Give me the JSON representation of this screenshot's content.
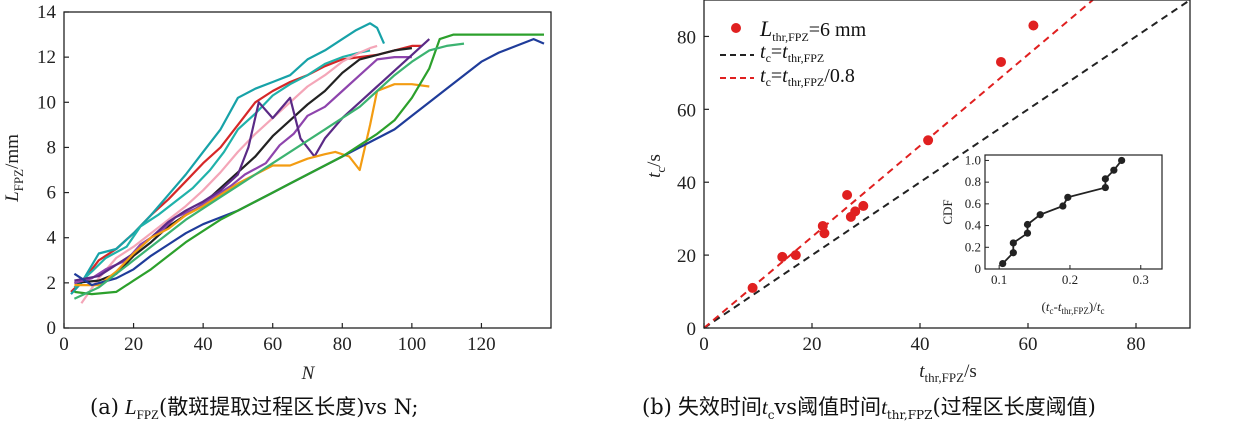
{
  "panel_a": {
    "caption_prefix": "(a)",
    "caption_suffix": "(散斑提取过程区长度)vs N;",
    "ylabel_main": "L",
    "ylabel_sub": "FPZ",
    "ylabel_unit": "/mm",
    "xlabel": "N",
    "chart_data": {
      "type": "line",
      "xlabel": "N",
      "ylabel": "LFPZ/mm",
      "xlim": [
        0,
        140
      ],
      "ylim": [
        0,
        14
      ],
      "xticks": [
        0,
        20,
        40,
        60,
        80,
        100,
        120
      ],
      "yticks": [
        0,
        2,
        4,
        6,
        8,
        10,
        12,
        14
      ],
      "grid": false,
      "series": [
        {
          "color": "#d62728",
          "x": [
            2,
            6,
            10,
            15,
            20,
            25,
            30,
            35,
            40,
            45,
            50,
            55,
            60,
            65,
            70,
            75,
            80,
            85,
            90,
            95,
            100,
            103
          ],
          "y": [
            1.6,
            2.2,
            3.0,
            3.5,
            4.2,
            5.0,
            5.7,
            6.5,
            7.3,
            8.0,
            9.0,
            10.0,
            10.5,
            10.9,
            11.2,
            11.6,
            11.9,
            12.0,
            12.1,
            12.3,
            12.5,
            12.5
          ]
        },
        {
          "color": "#17a2a8",
          "x": [
            2,
            5,
            10,
            15,
            20,
            25,
            30,
            35,
            40,
            45,
            50,
            55,
            60,
            65,
            70,
            75,
            80,
            84,
            88,
            90,
            92
          ],
          "y": [
            1.5,
            2.0,
            3.3,
            3.5,
            4.2,
            5.0,
            5.9,
            6.8,
            7.8,
            8.8,
            10.2,
            10.6,
            10.9,
            11.2,
            11.9,
            12.3,
            12.8,
            13.2,
            13.5,
            13.3,
            12.6
          ]
        },
        {
          "color": "#20b2aa",
          "x": [
            3,
            8,
            12,
            18,
            22,
            27,
            32,
            37,
            42,
            46,
            50,
            55,
            60,
            65,
            70,
            75,
            80,
            85,
            88
          ],
          "y": [
            1.8,
            2.5,
            3.1,
            3.6,
            4.5,
            5.0,
            5.6,
            6.2,
            7.0,
            7.8,
            8.8,
            9.5,
            10.3,
            10.8,
            11.2,
            11.7,
            12.0,
            12.2,
            12.3
          ]
        },
        {
          "color": "#f4a6b8",
          "x": [
            5,
            10,
            15,
            20,
            25,
            30,
            35,
            40,
            45,
            50,
            55,
            60,
            65,
            70,
            75,
            80,
            85,
            88,
            90
          ],
          "y": [
            1.1,
            2.2,
            3.1,
            3.6,
            4.2,
            4.8,
            5.4,
            6.1,
            6.9,
            7.8,
            8.6,
            9.3,
            10.0,
            10.7,
            11.2,
            11.8,
            12.2,
            12.4,
            12.5
          ]
        },
        {
          "color": "#222222",
          "x": [
            3,
            10,
            15,
            20,
            25,
            30,
            35,
            40,
            45,
            50,
            55,
            60,
            65,
            70,
            75,
            80,
            85,
            90,
            95,
            100
          ],
          "y": [
            2.0,
            2.1,
            2.4,
            3.2,
            3.8,
            4.5,
            5.0,
            5.5,
            6.2,
            6.9,
            7.6,
            8.5,
            9.2,
            9.9,
            10.5,
            11.3,
            11.9,
            12.1,
            12.3,
            12.4
          ]
        },
        {
          "color": "#8e44ad",
          "x": [
            3,
            8,
            12,
            18,
            22,
            28,
            32,
            38,
            42,
            48,
            52,
            58,
            62,
            66,
            70,
            75,
            80,
            85,
            90,
            95,
            100
          ],
          "y": [
            2.0,
            2.2,
            2.6,
            3.0,
            3.7,
            4.3,
            4.9,
            5.3,
            5.7,
            6.3,
            6.8,
            7.3,
            8.1,
            8.6,
            9.4,
            9.8,
            10.5,
            11.2,
            11.9,
            12.0,
            12.0
          ]
        },
        {
          "color": "#5b2a86",
          "x": [
            3,
            10,
            15,
            20,
            25,
            30,
            35,
            40,
            45,
            50,
            53,
            56,
            60,
            65,
            68,
            72,
            75,
            80,
            85,
            90,
            95,
            100,
            105
          ],
          "y": [
            2.1,
            2.3,
            2.8,
            3.3,
            4.0,
            4.7,
            5.2,
            5.6,
            6.1,
            6.8,
            8.0,
            10.0,
            9.3,
            10.2,
            8.4,
            7.6,
            8.4,
            9.3,
            10.0,
            10.7,
            11.4,
            12.1,
            12.8
          ]
        },
        {
          "color": "#f39c12",
          "x": [
            3,
            10,
            15,
            20,
            25,
            30,
            35,
            40,
            45,
            50,
            55,
            60,
            65,
            70,
            75,
            78,
            82,
            85,
            88,
            90,
            95,
            100,
            105
          ],
          "y": [
            1.9,
            1.9,
            2.5,
            3.3,
            4.0,
            4.4,
            5.0,
            5.4,
            5.9,
            6.4,
            6.8,
            7.2,
            7.2,
            7.5,
            7.7,
            7.8,
            7.6,
            7.0,
            9.0,
            10.5,
            10.8,
            10.8,
            10.7
          ]
        },
        {
          "color": "#1f3c9a",
          "x": [
            3,
            8,
            15,
            20,
            25,
            30,
            35,
            40,
            45,
            50,
            55,
            60,
            65,
            70,
            75,
            80,
            85,
            90,
            95,
            100,
            105,
            110,
            115,
            120,
            125,
            130,
            135,
            138
          ],
          "y": [
            2.4,
            1.9,
            2.2,
            2.6,
            3.2,
            3.7,
            4.2,
            4.6,
            4.9,
            5.2,
            5.6,
            6.0,
            6.4,
            6.8,
            7.2,
            7.6,
            8.0,
            8.4,
            8.8,
            9.4,
            10.0,
            10.6,
            11.2,
            11.8,
            12.2,
            12.5,
            12.8,
            12.6
          ]
        },
        {
          "color": "#2ca02c",
          "x": [
            3,
            8,
            15,
            20,
            25,
            30,
            35,
            40,
            45,
            50,
            55,
            60,
            65,
            70,
            75,
            80,
            85,
            90,
            95,
            100,
            105,
            108,
            112,
            120,
            130,
            138
          ],
          "y": [
            1.6,
            1.5,
            1.6,
            2.1,
            2.6,
            3.2,
            3.8,
            4.3,
            4.8,
            5.2,
            5.6,
            6.0,
            6.4,
            6.8,
            7.2,
            7.6,
            8.1,
            8.6,
            9.2,
            10.2,
            11.5,
            12.8,
            13.0,
            13.0,
            13.0,
            13.0
          ]
        },
        {
          "color": "#3cb371",
          "x": [
            3,
            10,
            15,
            20,
            25,
            30,
            35,
            40,
            45,
            50,
            55,
            60,
            65,
            70,
            75,
            80,
            85,
            90,
            95,
            100,
            105,
            110,
            115
          ],
          "y": [
            1.3,
            1.8,
            2.4,
            3.0,
            3.6,
            4.2,
            4.8,
            5.3,
            5.8,
            6.3,
            6.8,
            7.3,
            7.8,
            8.3,
            8.8,
            9.3,
            9.8,
            10.5,
            11.2,
            11.8,
            12.3,
            12.5,
            12.6
          ]
        }
      ]
    }
  },
  "panel_b": {
    "caption_prefix": "(b)",
    "caption_main": "失效时间",
    "caption_tc_main": "t",
    "caption_tc_sub": "c",
    "caption_mid": "vs阈值时间",
    "caption_t_main": "t",
    "caption_t_sub": "thr,FPZ",
    "caption_end": "(过程区长度阈值)",
    "ylabel_main": "t",
    "ylabel_sub": "c",
    "ylabel_unit": "/s",
    "xlabel_main": "t",
    "xlabel_sub": "thr,FPZ",
    "xlabel_unit": "/s",
    "legend": {
      "points_main": "L",
      "points_sub": "thr,FPZ",
      "points_rest": "=6 mm",
      "black_lhs_main": "t",
      "black_lhs_sub": "c",
      "black_eq": "=",
      "black_rhs_main": "t",
      "black_rhs_sub": "thr,FPZ",
      "red_lhs_main": "t",
      "red_lhs_sub": "c",
      "red_eq": "=",
      "red_rhs_main": "t",
      "red_rhs_sub": "thr,FPZ",
      "red_rhs_tail": "/0.8"
    },
    "chart_data": {
      "type": "scatter",
      "xlim": [
        0,
        90
      ],
      "ylim": [
        0,
        90
      ],
      "xticks": [
        0,
        20,
        40,
        60,
        80
      ],
      "yticks": [
        0,
        20,
        40,
        60,
        80
      ],
      "points": {
        "color": "#e02020",
        "x": [
          9,
          14.5,
          17,
          22,
          22.3,
          26.5,
          27.2,
          28,
          29.5,
          41.5,
          55,
          61
        ],
        "y": [
          11,
          19.5,
          20,
          28,
          26,
          36.5,
          30.5,
          32,
          33.5,
          51.5,
          73,
          83
        ]
      },
      "lines": [
        {
          "color": "#222222",
          "style": "dashed",
          "slope": 1.0
        },
        {
          "color": "#e02020",
          "style": "dashed",
          "slope": 1.25
        }
      ],
      "legend_position": "top-left"
    },
    "inset": {
      "ylabel": "CDF",
      "xlabel_open": "(",
      "xlabel_tc_main": "t",
      "xlabel_tc_sub": "c",
      "xlabel_minus": "-",
      "xlabel_t_main": "t",
      "xlabel_t_sub": "thr,FPZ",
      "xlabel_close": ")/",
      "xlabel_den_main": "t",
      "xlabel_den_sub": "c",
      "chart_data": {
        "type": "line",
        "xlim": [
          0.08,
          0.33
        ],
        "ylim": [
          0,
          1.05
        ],
        "xticks": [
          0.1,
          0.2,
          0.3
        ],
        "xtick_labels": [
          "0.1",
          "0.2",
          "0.3"
        ],
        "yticks": [
          0,
          0.2,
          0.4,
          0.6,
          0.8,
          1.0
        ],
        "ytick_labels": [
          "0",
          "0.2",
          "0.4",
          "0.6",
          "0.8",
          "1.0"
        ],
        "x": [
          0.105,
          0.12,
          0.12,
          0.14,
          0.14,
          0.158,
          0.19,
          0.197,
          0.25,
          0.25,
          0.262,
          0.273
        ],
        "y": [
          0.05,
          0.15,
          0.24,
          0.33,
          0.41,
          0.5,
          0.58,
          0.66,
          0.75,
          0.83,
          0.91,
          1.0
        ]
      }
    }
  }
}
